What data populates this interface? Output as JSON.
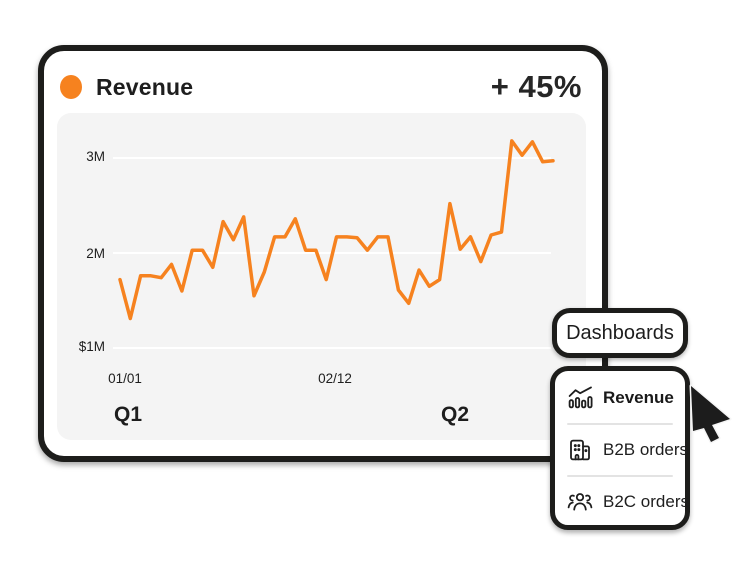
{
  "page": {
    "background_color": "#ffffff"
  },
  "card": {
    "title": "Revenue",
    "delta_label": "+ 45%",
    "accent_color": "#F6821F"
  },
  "chart_data": {
    "type": "line",
    "title": "Revenue",
    "unit": "USD millions",
    "series": [
      {
        "name": "Revenue",
        "color": "#F6821F",
        "values_millions": [
          1.72,
          1.31,
          1.76,
          1.76,
          1.74,
          1.88,
          1.6,
          2.03,
          2.03,
          1.85,
          2.33,
          2.14,
          2.38,
          1.55,
          1.8,
          2.17,
          2.17,
          2.36,
          2.03,
          2.03,
          1.72,
          2.17,
          2.17,
          2.16,
          2.03,
          2.17,
          2.17,
          1.61,
          1.47,
          1.82,
          1.65,
          1.72,
          2.52,
          2.04,
          2.17,
          1.91,
          2.19,
          2.22,
          3.18,
          3.03,
          3.17,
          2.96,
          2.97
        ]
      }
    ],
    "ytick_labels": [
      "3M",
      "2M",
      "$1M"
    ],
    "ytick_values_millions": [
      3,
      2,
      1
    ],
    "ylim_millions": [
      1.0,
      3.4
    ],
    "xtick_labels": [
      "01/01",
      "02/12"
    ],
    "quarter_labels": [
      "Q1",
      "Q2"
    ],
    "grid": true,
    "legend": false,
    "gridline_color": "#ffffff",
    "panel_color": "#f4f4f4"
  },
  "dashboards_popover": {
    "button_label": "Dashboards",
    "menu_items": [
      {
        "label": "Revenue",
        "icon": "bar-chart-trend-icon",
        "selected": true
      },
      {
        "label": "B2B orders",
        "icon": "building-icon",
        "selected": false
      },
      {
        "label": "B2C orders",
        "icon": "people-group-icon",
        "selected": false
      }
    ]
  },
  "cursor": {
    "type": "arrow-pointer",
    "pointing": "right"
  }
}
